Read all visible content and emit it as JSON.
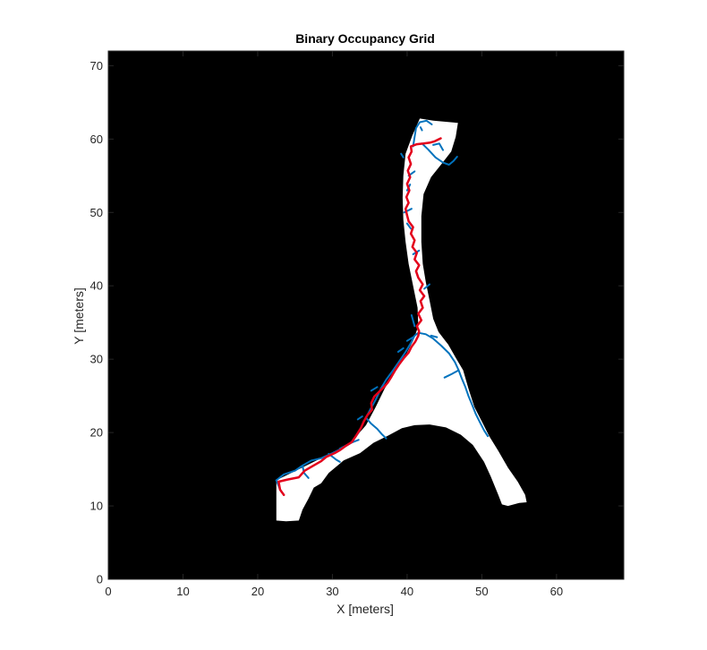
{
  "chart_data": {
    "type": "occupancy-grid-with-paths",
    "title": "Binary Occupancy Grid",
    "xlabel": "X [meters]",
    "ylabel": "Y [meters]",
    "xlim": [
      0,
      69
    ],
    "ylim": [
      0,
      72
    ],
    "xticks": [
      "0",
      "10",
      "20",
      "30",
      "40",
      "50",
      "60"
    ],
    "yticks": [
      "0",
      "10",
      "20",
      "30",
      "40",
      "50",
      "60",
      "70"
    ],
    "grid": false,
    "colors": {
      "occupied": "#000000",
      "free": "#ffffff",
      "tree": "#0072bd",
      "path": "#e3001b",
      "axis": "#262626"
    },
    "free_space": [
      [
        41.7,
        62.8
      ],
      [
        43.5,
        62.5
      ],
      [
        46.8,
        62.2
      ],
      [
        46.5,
        60.3
      ],
      [
        45.9,
        58.3
      ],
      [
        44.6,
        56.6
      ],
      [
        43.2,
        54.8
      ],
      [
        42.2,
        52.5
      ],
      [
        41.9,
        49.5
      ],
      [
        41.9,
        46.0
      ],
      [
        42.1,
        43.0
      ],
      [
        42.5,
        40.5
      ],
      [
        43.0,
        38.0
      ],
      [
        43.5,
        35.5
      ],
      [
        44.2,
        33.7
      ],
      [
        45.5,
        32.0
      ],
      [
        46.5,
        30.2
      ],
      [
        47.5,
        28.5
      ],
      [
        48.2,
        26.0
      ],
      [
        49.0,
        23.5
      ],
      [
        50.0,
        21.5
      ],
      [
        51.0,
        19.5
      ],
      [
        52.2,
        17.5
      ],
      [
        53.5,
        15.2
      ],
      [
        54.8,
        13.3
      ],
      [
        55.8,
        11.5
      ],
      [
        56.0,
        10.5
      ],
      [
        55.0,
        10.4
      ],
      [
        53.5,
        10.0
      ],
      [
        52.7,
        10.2
      ],
      [
        52.2,
        11.5
      ],
      [
        51.2,
        14.0
      ],
      [
        50.3,
        16.0
      ],
      [
        48.8,
        18.3
      ],
      [
        47.2,
        19.7
      ],
      [
        45.2,
        20.7
      ],
      [
        43.0,
        21.1
      ],
      [
        41.0,
        21.0
      ],
      [
        39.3,
        20.6
      ],
      [
        37.5,
        19.6
      ],
      [
        35.5,
        18.6
      ],
      [
        33.7,
        17.2
      ],
      [
        31.5,
        16.2
      ],
      [
        29.5,
        14.5
      ],
      [
        28.5,
        13.1
      ],
      [
        27.5,
        12.5
      ],
      [
        26.8,
        11.0
      ],
      [
        26.0,
        9.5
      ],
      [
        25.5,
        8.0
      ],
      [
        23.8,
        7.9
      ],
      [
        22.5,
        8.0
      ],
      [
        22.5,
        9.5
      ],
      [
        22.5,
        12.0
      ],
      [
        22.5,
        13.5
      ],
      [
        24.5,
        14.5
      ],
      [
        26.5,
        15.5
      ],
      [
        28.5,
        16.5
      ],
      [
        30.8,
        17.5
      ],
      [
        32.8,
        19.0
      ],
      [
        34.5,
        21.0
      ],
      [
        35.8,
        23.5
      ],
      [
        37.0,
        26.0
      ],
      [
        38.5,
        28.5
      ],
      [
        39.8,
        30.5
      ],
      [
        40.8,
        32.5
      ],
      [
        41.5,
        34.5
      ],
      [
        41.4,
        37.0
      ],
      [
        40.8,
        40.0
      ],
      [
        40.2,
        43.0
      ],
      [
        39.8,
        46.0
      ],
      [
        39.5,
        49.0
      ],
      [
        39.4,
        52.0
      ],
      [
        39.5,
        55.0
      ],
      [
        39.8,
        58.0
      ],
      [
        40.7,
        60.5
      ]
    ],
    "series": [
      {
        "type": "tree",
        "branches": [
          [
            [
              22.5,
              13.5
            ],
            [
              23.5,
              14.3
            ],
            [
              25.0,
              14.8
            ],
            [
              26.0,
              15.5
            ],
            [
              27.2,
              16.2
            ],
            [
              28.5,
              16.5
            ],
            [
              30.0,
              17.2
            ],
            [
              31.2,
              17.8
            ],
            [
              32.5,
              18.6
            ],
            [
              33.5,
              20.0
            ],
            [
              34.2,
              21.5
            ],
            [
              35.0,
              23.0
            ],
            [
              35.8,
              24.5
            ],
            [
              36.5,
              26.0
            ],
            [
              37.2,
              27.2
            ],
            [
              38.2,
              28.6
            ],
            [
              39.0,
              29.8
            ],
            [
              39.8,
              31.0
            ],
            [
              40.5,
              32.2
            ],
            [
              41.0,
              33.2
            ],
            [
              41.5,
              33.6
            ]
          ],
          [
            [
              41.5,
              33.6
            ],
            [
              42.5,
              33.4
            ],
            [
              43.5,
              32.8
            ],
            [
              44.6,
              31.8
            ],
            [
              45.6,
              30.8
            ],
            [
              46.4,
              29.6
            ],
            [
              46.9,
              28.5
            ],
            [
              47.3,
              27.4
            ],
            [
              47.8,
              26.2
            ],
            [
              48.2,
              25.0
            ],
            [
              48.7,
              23.8
            ],
            [
              49.2,
              22.5
            ],
            [
              49.8,
              21.3
            ],
            [
              50.3,
              20.3
            ],
            [
              50.8,
              19.5
            ]
          ],
          [
            [
              46.9,
              28.5
            ],
            [
              46.0,
              28.0
            ],
            [
              45.0,
              27.5
            ]
          ],
          [
            [
              34.5,
              22.0
            ],
            [
              35.2,
              21.2
            ],
            [
              36.0,
              20.5
            ],
            [
              36.6,
              19.8
            ],
            [
              37.2,
              19.2
            ]
          ],
          [
            [
              31.0,
              17.8
            ],
            [
              32.5,
              18.6
            ],
            [
              33.5,
              19.0
            ]
          ],
          [
            [
              26.0,
              15.5
            ],
            [
              26.2,
              14.5
            ],
            [
              26.8,
              13.8
            ]
          ],
          [
            [
              29.5,
              17.1
            ],
            [
              30.5,
              16.3
            ],
            [
              31.0,
              16.0
            ]
          ],
          [
            [
              43.2,
              33.2
            ],
            [
              44.0,
              33.0
            ]
          ],
          [
            [
              40.8,
              33.0
            ],
            [
              40.0,
              32.5
            ]
          ],
          [
            [
              39.5,
              31.5
            ],
            [
              38.8,
              31.0
            ]
          ],
          [
            [
              36.0,
              26.2
            ],
            [
              35.2,
              25.7
            ]
          ],
          [
            [
              34.0,
              22.2
            ],
            [
              33.4,
              21.8
            ]
          ],
          [
            [
              41.0,
              34.5
            ],
            [
              40.6,
              36.0
            ]
          ],
          [
            [
              42.3,
              39.6
            ],
            [
              43.0,
              40.2
            ]
          ],
          [
            [
              40.8,
              44.3
            ],
            [
              41.6,
              44.8
            ]
          ],
          [
            [
              40.0,
              48.5
            ],
            [
              40.5,
              47.8
            ]
          ],
          [
            [
              39.6,
              50.0
            ],
            [
              40.6,
              50.5
            ]
          ],
          [
            [
              40.0,
              53.0
            ],
            [
              40.4,
              53.8
            ]
          ],
          [
            [
              40.2,
              55.0
            ],
            [
              41.0,
              55.6
            ]
          ],
          [
            [
              39.5,
              57.5
            ],
            [
              39.2,
              58.0
            ]
          ],
          [
            [
              40.8,
              59.0
            ],
            [
              41.0,
              60.3
            ],
            [
              41.2,
              61.5
            ],
            [
              41.7,
              62.3
            ],
            [
              42.6,
              62.5
            ],
            [
              43.3,
              62.0
            ]
          ],
          [
            [
              42.0,
              59.4
            ],
            [
              42.8,
              58.6
            ],
            [
              43.8,
              57.5
            ],
            [
              44.8,
              56.8
            ],
            [
              45.6,
              56.5
            ],
            [
              46.2,
              57.0
            ],
            [
              46.7,
              57.6
            ]
          ],
          [
            [
              43.5,
              59.2
            ],
            [
              44.3,
              59.4
            ],
            [
              44.8,
              58.5
            ]
          ],
          [
            [
              41.8,
              61.6
            ],
            [
              42.0,
              61.2
            ]
          ],
          [
            [
              22.5,
              13.5
            ],
            [
              23.0,
              12.2
            ],
            [
              23.5,
              11.5
            ]
          ]
        ]
      },
      {
        "type": "path",
        "points": [
          [
            23.5,
            11.5
          ],
          [
            23.0,
            12.2
          ],
          [
            22.8,
            13.3
          ],
          [
            24.0,
            13.6
          ],
          [
            25.5,
            13.9
          ],
          [
            26.3,
            14.8
          ],
          [
            27.3,
            15.4
          ],
          [
            28.5,
            16.1
          ],
          [
            29.2,
            16.7
          ],
          [
            30.3,
            17.2
          ],
          [
            31.0,
            17.6
          ],
          [
            31.8,
            18.2
          ],
          [
            32.6,
            18.7
          ],
          [
            33.2,
            19.6
          ],
          [
            33.8,
            20.6
          ],
          [
            34.2,
            21.5
          ],
          [
            34.7,
            22.4
          ],
          [
            35.3,
            23.1
          ],
          [
            35.2,
            24.0
          ],
          [
            35.6,
            24.9
          ],
          [
            36.3,
            25.6
          ],
          [
            36.9,
            26.2
          ],
          [
            37.4,
            26.8
          ],
          [
            37.9,
            27.6
          ],
          [
            38.4,
            28.5
          ],
          [
            39.0,
            29.4
          ],
          [
            39.6,
            30.2
          ],
          [
            40.2,
            30.9
          ],
          [
            40.6,
            31.7
          ],
          [
            41.1,
            32.4
          ],
          [
            41.5,
            33.2
          ],
          [
            41.6,
            33.8
          ],
          [
            41.3,
            34.5
          ],
          [
            41.9,
            35.3
          ],
          [
            41.5,
            36.2
          ],
          [
            42.1,
            37.0
          ],
          [
            41.8,
            37.9
          ],
          [
            42.3,
            38.6
          ],
          [
            41.7,
            39.4
          ],
          [
            42.1,
            40.2
          ],
          [
            41.5,
            41.1
          ],
          [
            41.2,
            42.0
          ],
          [
            41.6,
            42.8
          ],
          [
            41.0,
            43.6
          ],
          [
            41.3,
            44.5
          ],
          [
            40.7,
            45.3
          ],
          [
            41.0,
            46.2
          ],
          [
            40.5,
            47.1
          ],
          [
            40.8,
            48.0
          ],
          [
            40.2,
            48.8
          ],
          [
            40.0,
            49.6
          ],
          [
            39.8,
            50.5
          ],
          [
            40.2,
            51.3
          ],
          [
            39.9,
            52.1
          ],
          [
            40.3,
            53.0
          ],
          [
            40.0,
            53.9
          ],
          [
            40.4,
            54.8
          ],
          [
            40.1,
            55.7
          ],
          [
            40.5,
            56.6
          ],
          [
            40.2,
            57.5
          ],
          [
            40.6,
            58.3
          ],
          [
            40.5,
            59.0
          ],
          [
            41.3,
            59.3
          ],
          [
            42.2,
            59.4
          ],
          [
            43.0,
            59.5
          ],
          [
            43.7,
            59.7
          ],
          [
            44.5,
            60.1
          ]
        ]
      }
    ]
  }
}
